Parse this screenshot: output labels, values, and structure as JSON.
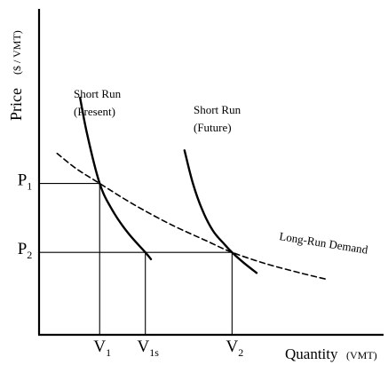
{
  "chart_data": {
    "type": "line",
    "ylabel": "Price",
    "ylabel_unit": "($ / VMT)",
    "xlabel": "Quantity",
    "xlabel_unit": "(VMT)",
    "xlim": [
      0,
      10
    ],
    "ylim": [
      0,
      10
    ],
    "grid": false,
    "legend": "none",
    "price_levels": [
      {
        "sym": "P",
        "sub": "1",
        "y": 4.94
      },
      {
        "sym": "P",
        "sub": "2",
        "y": 2.69
      }
    ],
    "quantity_levels": [
      {
        "sym": "V",
        "sub": "1",
        "x": 1.95,
        "to": "P1"
      },
      {
        "sym": "V",
        "sub": "1s",
        "x": 3.42,
        "to": "P2"
      },
      {
        "sym": "V",
        "sub": "2",
        "x": 6.21,
        "to": "P2"
      }
    ],
    "series": [
      {
        "name_lines": [
          "Short Run",
          "(Present)"
        ],
        "style": "solid",
        "x": [
          1.32,
          1.55,
          1.95,
          2.35,
          2.85,
          3.42,
          3.6
        ],
        "y": [
          7.74,
          6.53,
          4.94,
          4.08,
          3.34,
          2.69,
          2.47
        ]
      },
      {
        "name_lines": [
          "Short Run",
          "(Future)"
        ],
        "style": "solid",
        "x": [
          4.68,
          4.95,
          5.25,
          5.6,
          5.95,
          6.21,
          6.6,
          7.0
        ],
        "y": [
          6.02,
          4.94,
          4.08,
          3.39,
          2.97,
          2.69,
          2.34,
          2.02
        ]
      },
      {
        "name": "Long-Run Demand",
        "style": "dashed",
        "x": [
          0.58,
          1.2,
          1.95,
          3.0,
          4.2,
          5.4,
          6.21,
          7.3,
          8.4,
          9.3
        ],
        "y": [
          5.92,
          5.42,
          4.94,
          4.28,
          3.62,
          3.06,
          2.69,
          2.32,
          2.02,
          1.8
        ]
      }
    ]
  }
}
